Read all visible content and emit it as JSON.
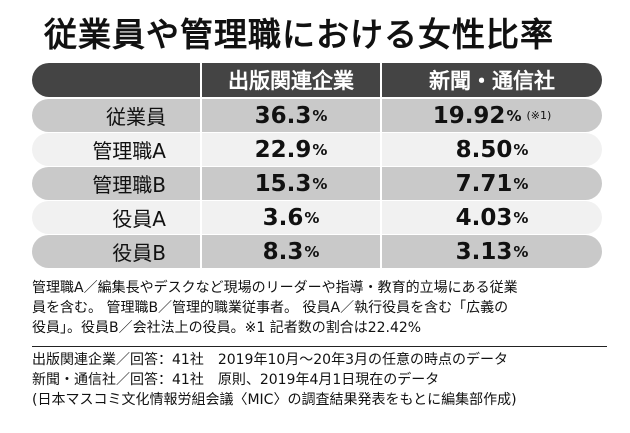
{
  "chart_data": {
    "type": "table",
    "title": "従業員や管理職における女性比率",
    "columns": [
      "",
      "出版関連企業",
      "新聞・通信社"
    ],
    "rows": [
      {
        "label": "従業員",
        "a": "36.3",
        "b": "19.92",
        "b_note": "(※1)"
      },
      {
        "label": "管理職A",
        "a": "22.9",
        "b": "8.50"
      },
      {
        "label": "管理職B",
        "a": "15.3",
        "b": "7.71"
      },
      {
        "label": "役員A",
        "a": "3.6",
        "b": "4.03"
      },
      {
        "label": "役員B",
        "a": "8.3",
        "b": "3.13"
      }
    ],
    "unit": "%"
  },
  "footnotes": [
    "管理職A／編集長やデスクなど現場のリーダーや指導・教育的立場にある従業",
    "員を含む。 管理職B／管理的職業従事者。 役員A／執行役員を含む「広義の",
    "役員」。役員B／会社法上の役員。※1 記者数の割合は22.42%"
  ],
  "source": [
    "出版関連企業／回答：41社　2019年10月〜20年3月の任意の時点のデータ",
    "新聞・通信社／回答：41社　原則、2019年4月1日現在のデータ",
    "(日本マスコミ文化情報労組会議〈MIC〉の調査結果発表をもとに編集部作成)"
  ]
}
